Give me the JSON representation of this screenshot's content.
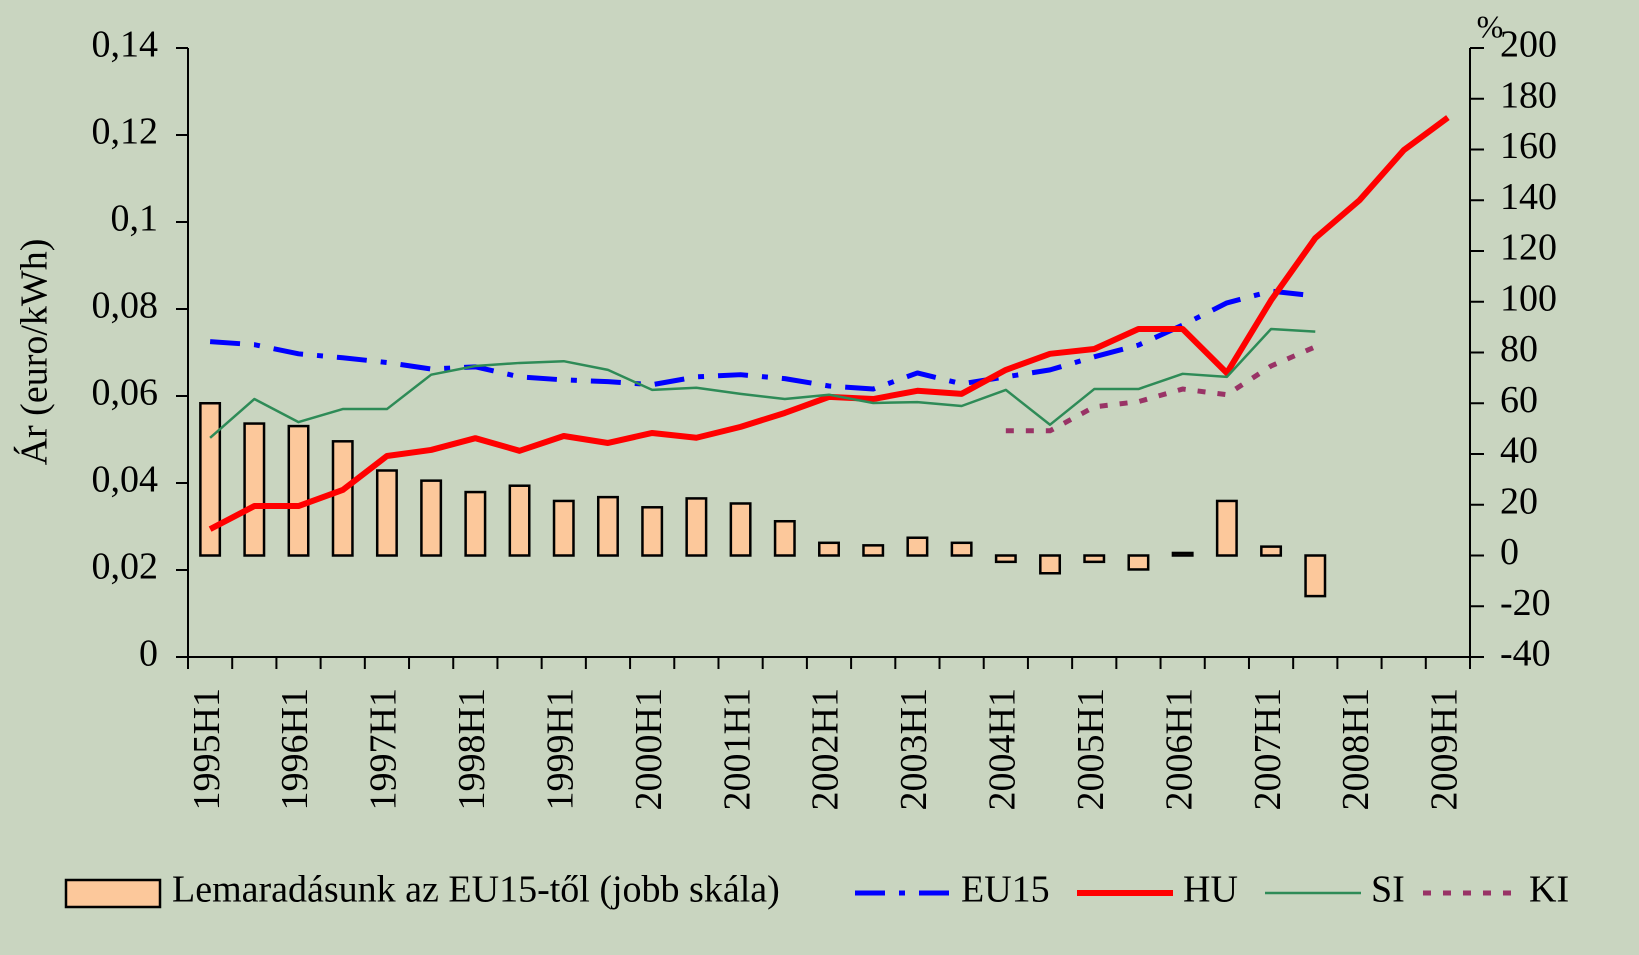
{
  "chart_data": {
    "type": "combo",
    "y_label": "Ár (euro/kWh)",
    "y2_unit_label": "%",
    "categories": [
      "1995H1",
      null,
      "1996H1",
      null,
      "1997H1",
      null,
      "1998H1",
      null,
      "1999H1",
      null,
      "2000H1",
      null,
      "2001H1",
      null,
      "2002H1",
      null,
      "2003H1",
      null,
      "2004H1",
      null,
      "2005H1",
      null,
      "2006H1",
      null,
      "2007H1",
      null,
      "2008H1",
      null,
      "2009H1"
    ],
    "ylim": [
      0,
      0.14
    ],
    "yticks": [
      0,
      {
        "value": 0.02,
        "label": "0,02"
      },
      {
        "value": 0.04,
        "label": "0,04"
      },
      {
        "value": 0.06,
        "label": "0,06"
      },
      {
        "value": 0.08,
        "label": "0,08"
      },
      {
        "value": 0.1,
        "label": "0,1"
      },
      {
        "value": 0.12,
        "label": "0,12"
      },
      {
        "value": 0.14,
        "label": "0,14"
      }
    ],
    "y2lim": [
      -40,
      200
    ],
    "y2ticks": [
      -40,
      -20,
      0,
      20,
      40,
      60,
      80,
      100,
      120,
      140,
      160,
      180,
      200
    ],
    "series": [
      {
        "name": "Lemaradásunk az EU15-től (jobb skála)",
        "type": "bar",
        "axis": "y2",
        "color": "#fcc89b",
        "values": [
          60,
          52,
          51,
          45,
          33.5,
          29.5,
          25,
          27.5,
          21.5,
          23,
          19,
          22.5,
          20.5,
          13.5,
          5,
          4,
          7,
          5,
          -2.5,
          -7,
          -2.5,
          -5.5,
          1,
          21.5,
          3.5,
          -16,
          null,
          null,
          null
        ]
      },
      {
        "name": "EU15",
        "type": "line",
        "color": "#0000ff",
        "width": 5,
        "dash": "dashdot",
        "values": [
          0.0725,
          0.0718,
          0.0697,
          0.0688,
          0.0677,
          0.0662,
          0.0667,
          0.0644,
          0.0637,
          0.0633,
          0.0626,
          0.0644,
          0.0649,
          0.064,
          0.0623,
          0.0616,
          0.0653,
          0.0628,
          0.0644,
          0.066,
          0.069,
          0.0717,
          0.0763,
          0.0814,
          0.0841,
          0.083,
          null,
          null,
          null
        ]
      },
      {
        "name": "HU",
        "type": "line",
        "color": "#ff0000",
        "width": 6,
        "dash": "solid",
        "values": [
          0.0294,
          0.0347,
          0.0347,
          0.0384,
          0.0462,
          0.0476,
          0.0503,
          0.0474,
          0.0508,
          0.0492,
          0.0515,
          0.0504,
          0.0529,
          0.0561,
          0.0598,
          0.0593,
          0.0612,
          0.0605,
          0.066,
          0.0697,
          0.0708,
          0.0754,
          0.0754,
          0.0653,
          0.082,
          0.0963,
          0.105,
          0.1165,
          0.124
        ]
      },
      {
        "name": "SI",
        "type": "line",
        "color": "#2e8b57",
        "width": 2.5,
        "dash": "solid",
        "values": [
          0.0504,
          0.0593,
          0.054,
          0.057,
          0.057,
          0.0649,
          0.0669,
          0.0676,
          0.068,
          0.066,
          0.0614,
          0.0619,
          0.0605,
          0.0593,
          0.0603,
          0.0584,
          0.0586,
          0.0577,
          0.0614,
          0.0534,
          0.0616,
          0.0616,
          0.0651,
          0.0644,
          0.0754,
          0.0748,
          null,
          null,
          null
        ]
      },
      {
        "name": "KI",
        "type": "line",
        "color": "#993366",
        "width": 5,
        "dash": "dot",
        "values": [
          null,
          null,
          null,
          null,
          null,
          null,
          null,
          null,
          null,
          null,
          null,
          null,
          null,
          null,
          null,
          null,
          null,
          null,
          0.052,
          0.052,
          0.0575,
          0.0587,
          0.0616,
          0.0603,
          0.0669,
          0.0713,
          null,
          null,
          null
        ]
      }
    ]
  }
}
